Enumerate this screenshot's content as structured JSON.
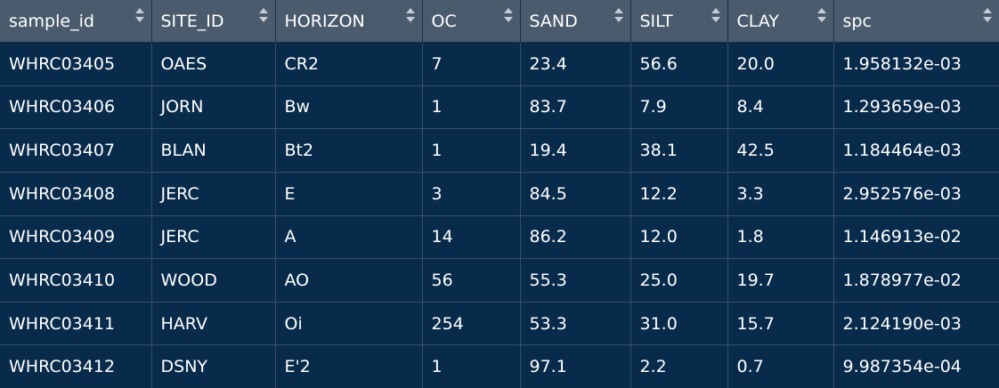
{
  "table": {
    "columns": [
      "sample_id",
      "SITE_ID",
      "HORIZON",
      "OC",
      "SAND",
      "SILT",
      "CLAY",
      "spc"
    ],
    "rows": [
      [
        "WHRC03405",
        "OAES",
        "CR2",
        "7",
        "23.4",
        "56.6",
        "20.0",
        "1.958132e-03"
      ],
      [
        "WHRC03406",
        "JORN",
        "Bw",
        "1",
        "83.7",
        "7.9",
        "8.4",
        "1.293659e-03"
      ],
      [
        "WHRC03407",
        "BLAN",
        "Bt2",
        "1",
        "19.4",
        "38.1",
        "42.5",
        "1.184464e-03"
      ],
      [
        "WHRC03408",
        "JERC",
        "E",
        "3",
        "84.5",
        "12.2",
        "3.3",
        "2.952576e-03"
      ],
      [
        "WHRC03409",
        "JERC",
        "A",
        "14",
        "86.2",
        "12.0",
        "1.8",
        "1.146913e-02"
      ],
      [
        "WHRC03410",
        "WOOD",
        "AO",
        "56",
        "55.3",
        "25.0",
        "19.7",
        "1.878977e-02"
      ],
      [
        "WHRC03411",
        "HARV",
        "Oi",
        "254",
        "53.3",
        "31.0",
        "15.7",
        "2.124190e-03"
      ],
      [
        "WHRC03412",
        "DSNY",
        "E'2",
        "1",
        "97.1",
        "2.2",
        "0.7",
        "9.987354e-04"
      ]
    ],
    "icons": {
      "sort": "sort-updown-icon"
    },
    "colors": {
      "header_bg": "#4a5b6e",
      "body_bg": "#082b4b",
      "text": "#ffffff"
    }
  }
}
